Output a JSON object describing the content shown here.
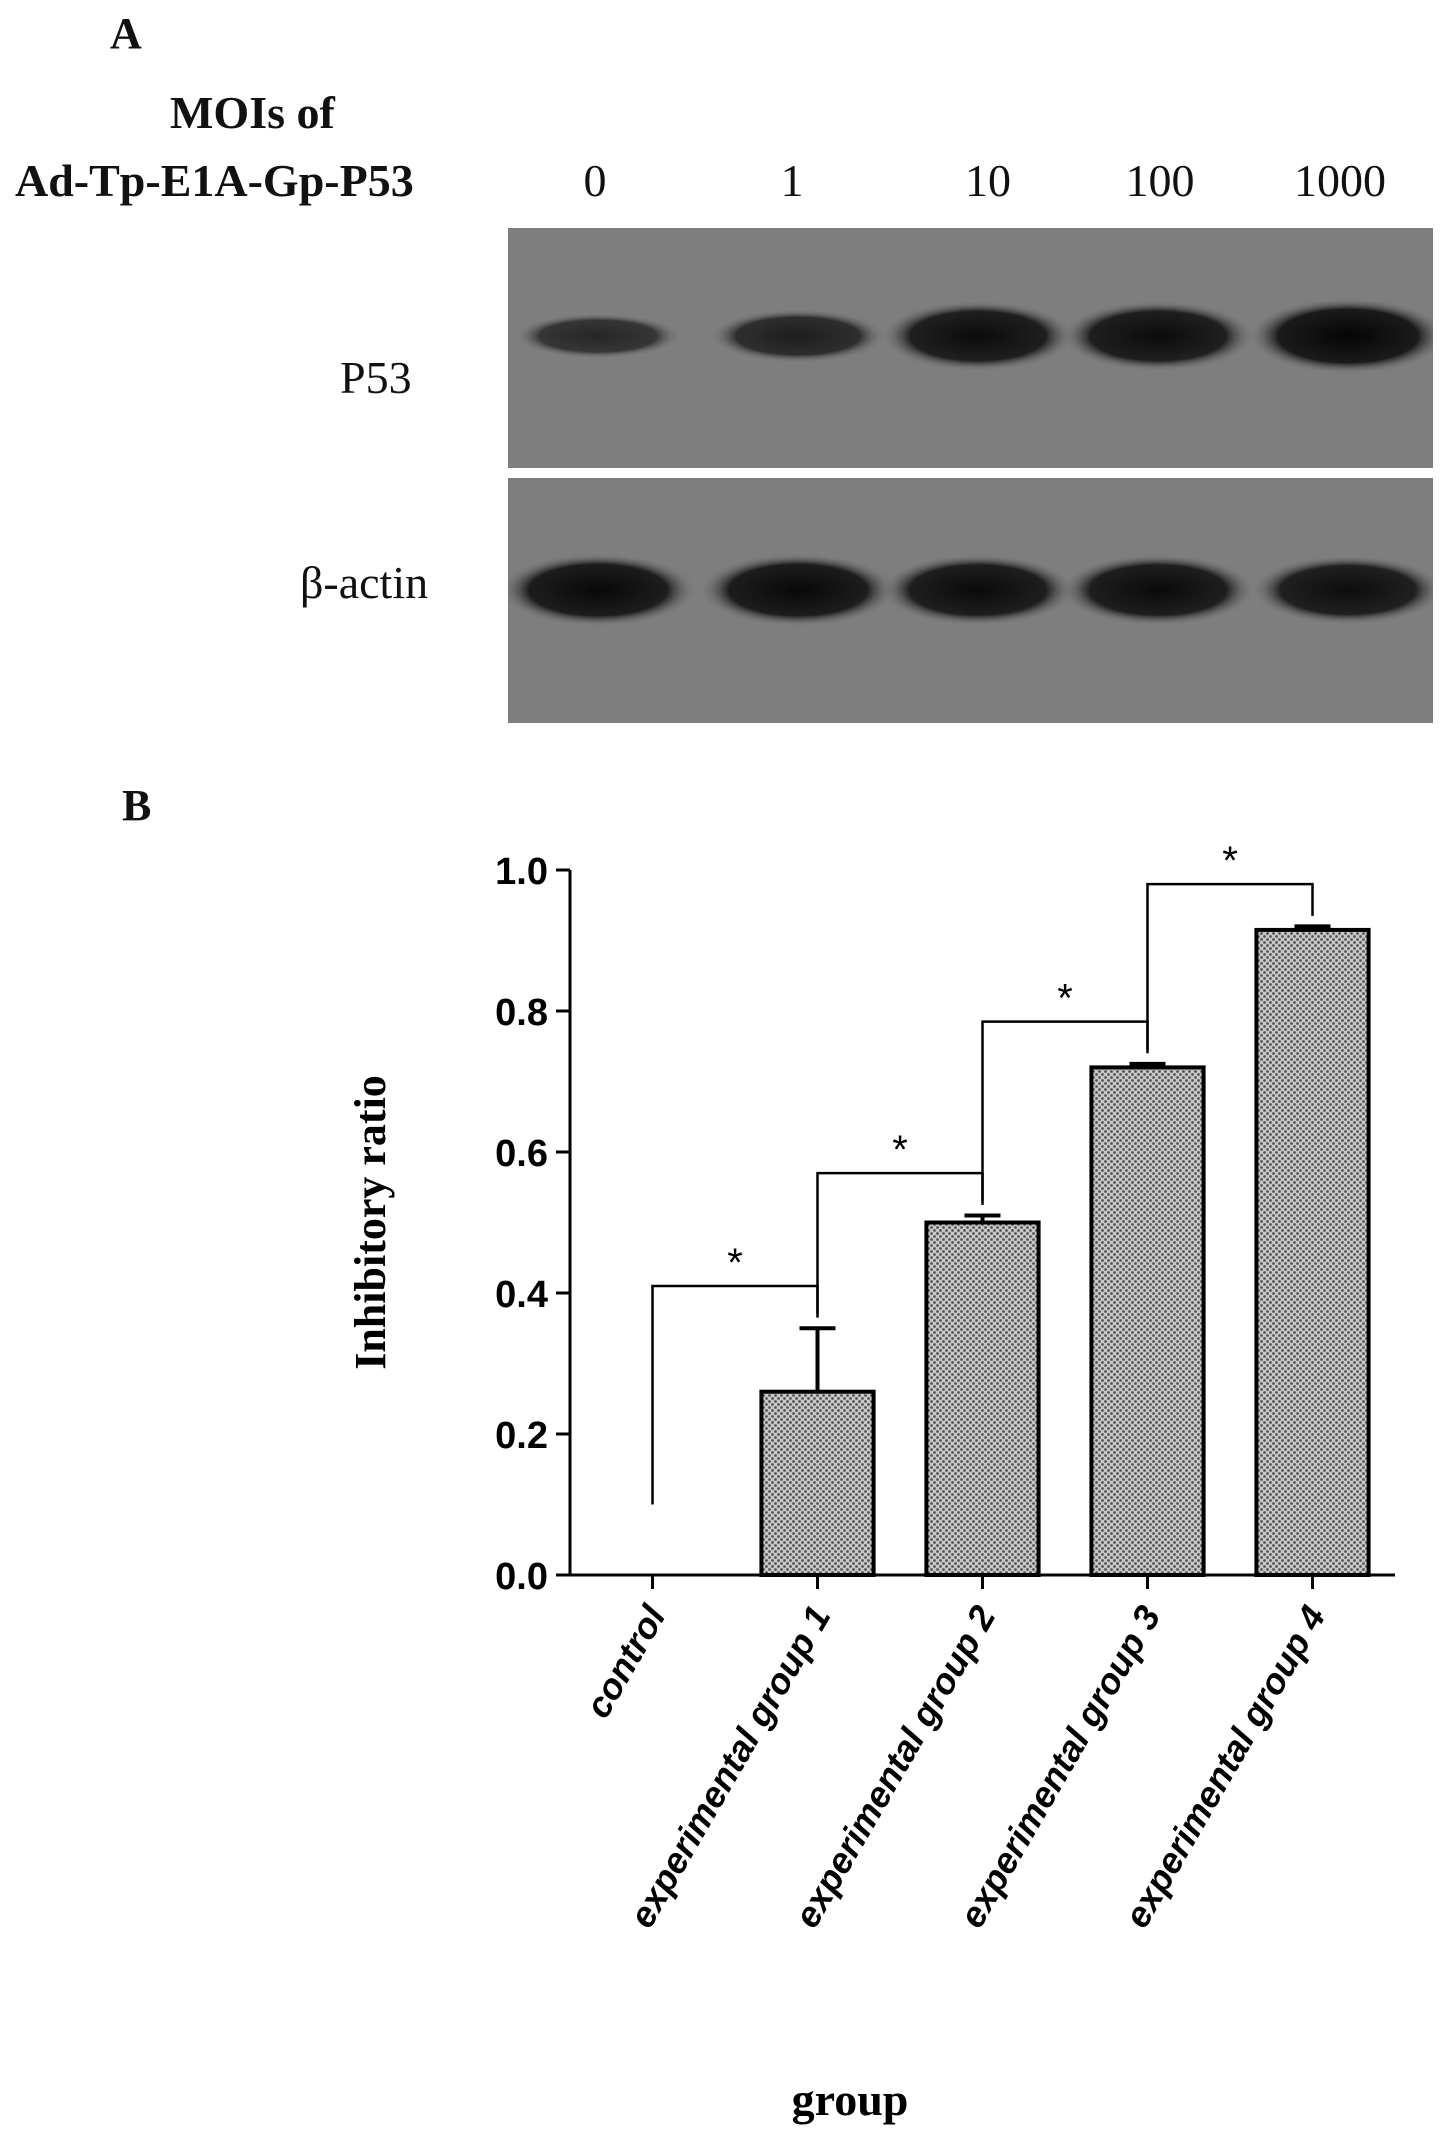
{
  "panel_a": {
    "label": "A",
    "header_line1": "MOIs of",
    "header_line2": "Ad-Tp-E1A-Gp-P53",
    "moi_values": [
      "0",
      "1",
      "10",
      "100",
      "1000"
    ],
    "bands": [
      {
        "name": "P53",
        "intensities": [
          0.45,
          0.6,
          0.9,
          0.9,
          1.0
        ]
      },
      {
        "name": "β-actin",
        "intensities": [
          0.95,
          0.95,
          0.92,
          0.92,
          0.88
        ]
      }
    ]
  },
  "panel_b": {
    "label": "B"
  },
  "chart_data": {
    "type": "bar",
    "categories": [
      "control",
      "experimental group 1",
      "experimental group 2",
      "experimental group 3",
      "experimental group 4"
    ],
    "values": [
      0,
      0.26,
      0.5,
      0.72,
      0.915
    ],
    "errors": [
      0,
      0.09,
      0.01,
      0.005,
      0.005
    ],
    "xlabel": "group",
    "ylabel": "Inhibitory ratio",
    "ylim": [
      0,
      1.0
    ],
    "yticks": [
      "0.0",
      "0.2",
      "0.4",
      "0.6",
      "0.8",
      "1.0"
    ],
    "grid": false,
    "significance": [
      {
        "from": 0,
        "to": 1,
        "label": "*"
      },
      {
        "from": 1,
        "to": 2,
        "label": "*"
      },
      {
        "from": 2,
        "to": 3,
        "label": "*"
      },
      {
        "from": 3,
        "to": 4,
        "label": "*"
      }
    ],
    "bar_color": "#9a9a9a"
  }
}
